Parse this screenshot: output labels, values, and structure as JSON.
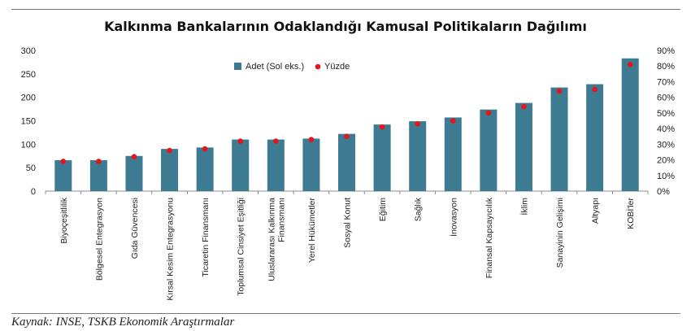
{
  "chart_data": {
    "type": "bar",
    "title": "Kalkınma Bankalarının Odaklandığı Kamusal Politikaların Dağılımı",
    "categories": [
      "Biyoçeşitlilik",
      "Bölgesel Entegrasyon",
      "Gıda Güvencesi",
      "Kırsal Kesim Entegrasyonu",
      "Ticaretin Finansmanı",
      "Toplumsal Cinsiyet Eşitliği",
      "Uluslararası Kalkınma Finansmanı",
      "Yerel Hükümetler",
      "Sosyal Konut",
      "Eğitim",
      "Sağlık",
      "İnovasyon",
      "Finansal Kapsayıcılık",
      "İklim",
      "Sanayinin Gelişimi",
      "Altyapı",
      "KOBİ'ler"
    ],
    "series": [
      {
        "name": "Adet (Sol eks.)",
        "type": "bar",
        "axis": "left",
        "values": [
          66,
          66,
          75,
          90,
          93,
          110,
          110,
          112,
          122,
          142,
          149,
          157,
          174,
          188,
          221,
          228,
          283
        ]
      },
      {
        "name": "Yüzde",
        "type": "scatter",
        "axis": "right",
        "values": [
          19,
          19,
          22,
          26,
          27,
          32,
          32,
          33,
          35,
          41,
          43,
          45,
          50,
          54,
          64,
          65,
          81
        ]
      }
    ],
    "y_left": {
      "ylim": [
        0,
        300
      ],
      "ticks": [
        "0",
        "50",
        "100",
        "150",
        "200",
        "250",
        "300"
      ]
    },
    "y_right": {
      "ylim": [
        0,
        90
      ],
      "ticks": [
        "0%",
        "10%",
        "20%",
        "30%",
        "40%",
        "50%",
        "60%",
        "70%",
        "80%",
        "90%"
      ]
    },
    "grid": false,
    "legend_position": "top-center",
    "colors": {
      "bar": "#3d7b93",
      "dot": "#e8141b"
    }
  },
  "footer": {
    "source": "Kaynak: INSE, TSKB Ekonomik Araştırmalar"
  }
}
